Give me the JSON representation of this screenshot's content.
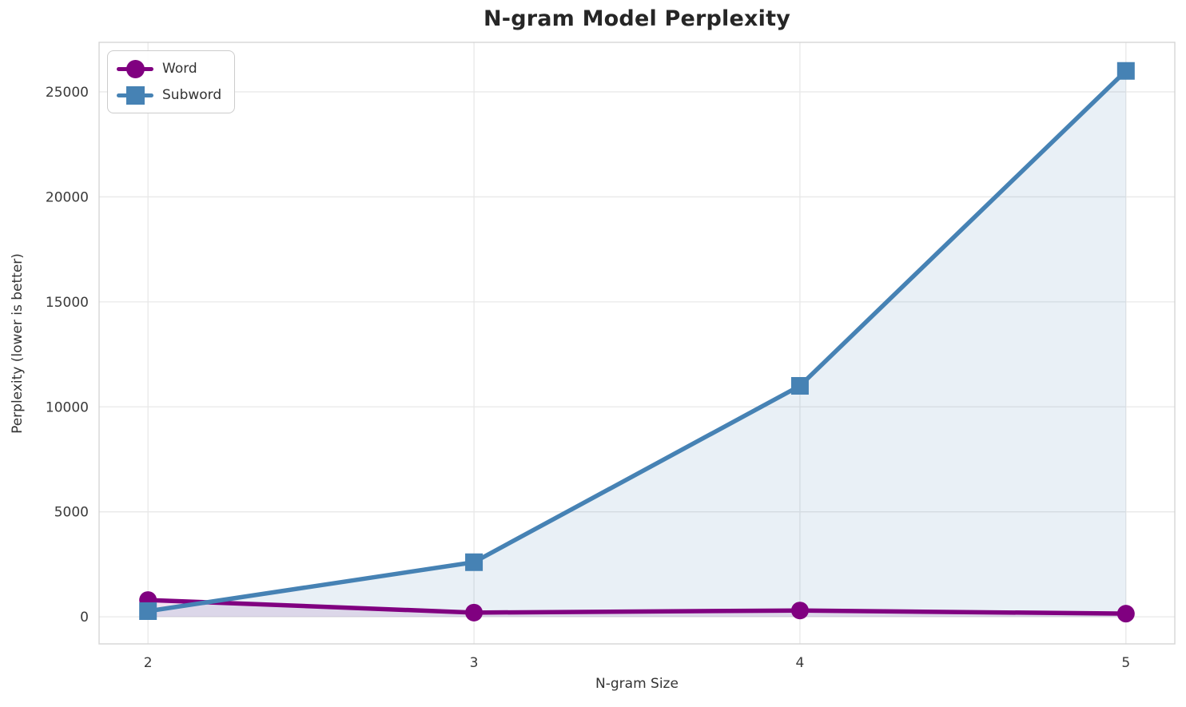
{
  "chart_data": {
    "type": "line",
    "title": "N-gram Model Perplexity",
    "xlabel": "N-gram Size",
    "ylabel": "Perplexity (lower is better)",
    "x": [
      2,
      3,
      4,
      5
    ],
    "series": [
      {
        "name": "Word",
        "color": "#800080",
        "marker": "circle",
        "fill_alpha": 0.11,
        "values": [
          800,
          200,
          300,
          150
        ]
      },
      {
        "name": "Subword",
        "color": "#4682B4",
        "marker": "square",
        "fill_alpha": 0.12,
        "values": [
          270,
          2600,
          11000,
          26000
        ]
      }
    ],
    "xticks": [
      2,
      3,
      4,
      5
    ],
    "yticks": [
      0,
      5000,
      10000,
      15000,
      20000,
      25000
    ],
    "xlim": [
      1.85,
      5.15
    ],
    "ylim": [
      -1290,
      27360
    ],
    "grid": true,
    "area_fill_to_zero": true,
    "legend_position": "upper-left",
    "colors": {
      "grid": "#e8e8e8",
      "spine": "#d5d5d5",
      "title_text": "#262626",
      "tick_text": "#3a3a3a",
      "label_text": "#333333"
    }
  }
}
